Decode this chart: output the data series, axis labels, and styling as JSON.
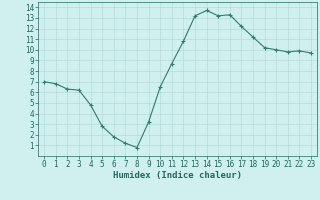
{
  "x": [
    0,
    1,
    2,
    3,
    4,
    5,
    6,
    7,
    8,
    9,
    10,
    11,
    12,
    13,
    14,
    15,
    16,
    17,
    18,
    19,
    20,
    21,
    22,
    23
  ],
  "y": [
    7.0,
    6.8,
    6.3,
    6.2,
    4.8,
    2.8,
    1.8,
    1.2,
    0.8,
    3.2,
    6.5,
    8.7,
    10.8,
    13.2,
    13.7,
    13.2,
    13.3,
    12.2,
    11.2,
    10.2,
    10.0,
    9.8,
    9.9,
    9.7
  ],
  "line_color": "#2e7d6e",
  "marker": "+",
  "marker_size": 3.5,
  "bg_color": "#cff0ee",
  "grid_color": "#aed8d4",
  "xlabel": "Humidex (Indice chaleur)",
  "xlim": [
    -0.5,
    23.5
  ],
  "ylim": [
    0,
    14.5
  ],
  "xticks": [
    0,
    1,
    2,
    3,
    4,
    5,
    6,
    7,
    8,
    9,
    10,
    11,
    12,
    13,
    14,
    15,
    16,
    17,
    18,
    19,
    20,
    21,
    22,
    23
  ],
  "yticks": [
    1,
    2,
    3,
    4,
    5,
    6,
    7,
    8,
    9,
    10,
    11,
    12,
    13,
    14
  ],
  "tick_fontsize": 5.5,
  "xlabel_fontsize": 6.5,
  "tick_color": "#1e6b5e",
  "label_color": "#1e6b5e"
}
